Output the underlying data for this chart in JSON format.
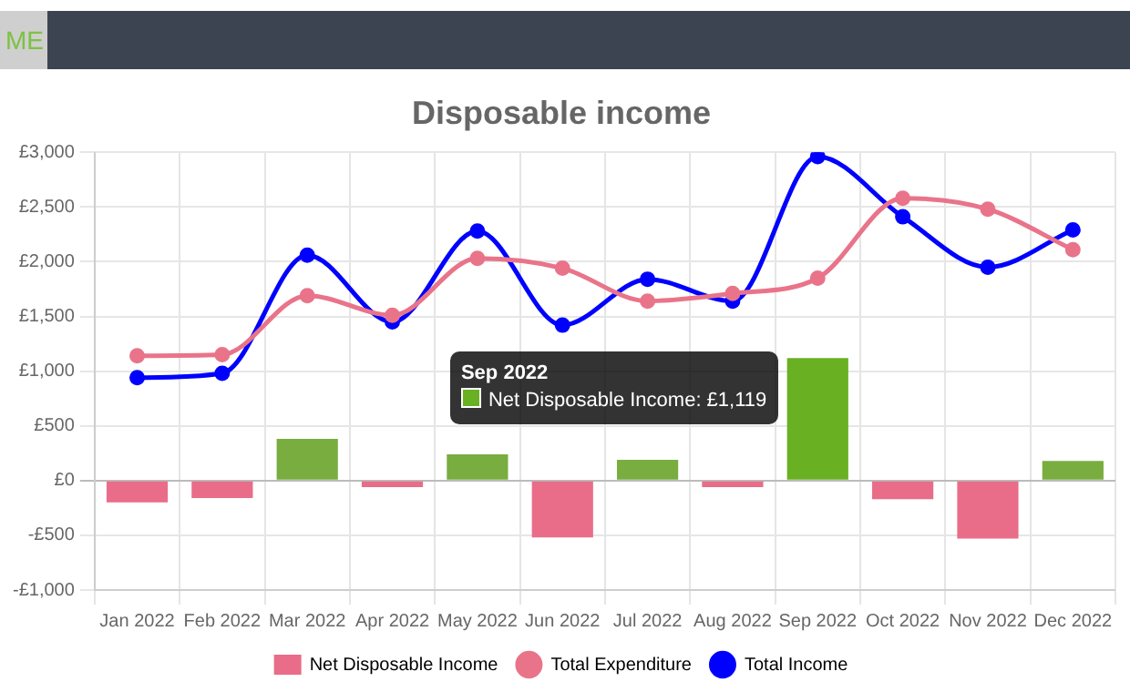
{
  "chart_data": {
    "type": "bar",
    "title": "Disposable income",
    "categories": [
      "Jan 2022",
      "Feb 2022",
      "Mar 2022",
      "Apr 2022",
      "May 2022",
      "Jun 2022",
      "Jul 2022",
      "Aug 2022",
      "Sep 2022",
      "Oct 2022",
      "Nov 2022",
      "Dec 2022"
    ],
    "series": [
      {
        "name": "Net Disposable Income",
        "colors": [
          "#e96d88",
          "#e96d88",
          "#79ad3f",
          "#e96d88",
          "#79ad3f",
          "#e96d88",
          "#79ad3f",
          "#e96d88",
          "#6ab023",
          "#e96d88",
          "#e96d88",
          "#79ad3f"
        ],
        "values": [
          -200,
          -160,
          380,
          -60,
          240,
          -520,
          190,
          -60,
          1119,
          -170,
          -530,
          180
        ]
      },
      {
        "name": "Total Expenditure",
        "type": "line",
        "color": "#e9748a",
        "values": [
          1140,
          1150,
          1690,
          1510,
          2030,
          1940,
          1640,
          1710,
          1850,
          2580,
          2480,
          2110
        ]
      },
      {
        "name": "Total Income",
        "type": "line",
        "color": "#0000ff",
        "values": [
          940,
          980,
          2060,
          1450,
          2280,
          1420,
          1840,
          1640,
          2960,
          2410,
          1950,
          2290
        ]
      }
    ],
    "ylim": [
      -1000,
      3000
    ],
    "yticks": [
      {
        "value": -1000,
        "label": "-£1,000"
      },
      {
        "value": -500,
        "label": "-£500"
      },
      {
        "value": 0,
        "label": "£0"
      },
      {
        "value": 500,
        "label": "£500"
      },
      {
        "value": 1000,
        "label": "£1,000"
      },
      {
        "value": 1500,
        "label": "£1,500"
      },
      {
        "value": 2000,
        "label": "£2,000"
      },
      {
        "value": 2500,
        "label": "£2,500"
      },
      {
        "value": 3000,
        "label": "£3,000"
      }
    ],
    "grid": true,
    "legend": "bottom",
    "marker": "circle",
    "annotations": [
      "ME",
      "Sep 2022",
      "Net Disposable Income: £1,119"
    ]
  }
}
